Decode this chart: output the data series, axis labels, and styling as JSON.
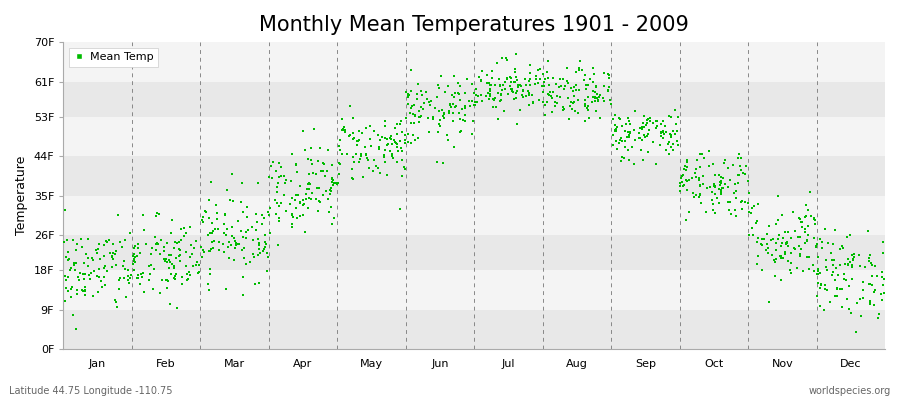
{
  "title": "Monthly Mean Temperatures 1901 - 2009",
  "ylabel": "Temperature",
  "xlabel_bottom_left": "Latitude 44.75 Longitude -110.75",
  "xlabel_bottom_right": "worldspecies.org",
  "legend_label": "Mean Temp",
  "yticks": [
    0,
    9,
    18,
    26,
    35,
    44,
    53,
    61,
    70
  ],
  "ytick_labels": [
    "0F",
    "9F",
    "18F",
    "26F",
    "35F",
    "44F",
    "53F",
    "61F",
    "70F"
  ],
  "months": [
    "Jan",
    "Feb",
    "Mar",
    "Apr",
    "May",
    "Jun",
    "Jul",
    "Aug",
    "Sep",
    "Oct",
    "Nov",
    "Dec"
  ],
  "month_means": [
    18,
    20,
    26,
    37,
    46,
    54,
    60,
    58,
    49,
    38,
    25,
    17
  ],
  "month_stds": [
    5,
    5,
    5,
    5,
    4,
    4,
    3,
    3,
    3,
    4,
    5,
    5
  ],
  "dot_color": "#00bb00",
  "background_color": "#ffffff",
  "plot_bg_light": "#f2f2f2",
  "plot_bg_dark": "#e0e0e0",
  "n_years": 109,
  "ylim_min": 0,
  "ylim_max": 70,
  "title_fontsize": 15,
  "axis_label_fontsize": 9,
  "tick_label_fontsize": 8,
  "dot_size": 3,
  "dashed_line_color": "#888888",
  "band_colors": [
    "#e8e8e8",
    "#f4f4f4",
    "#e8e8e8",
    "#f4f4f4",
    "#e8e8e8",
    "#f4f4f4",
    "#e8e8e8",
    "#f4f4f4"
  ]
}
